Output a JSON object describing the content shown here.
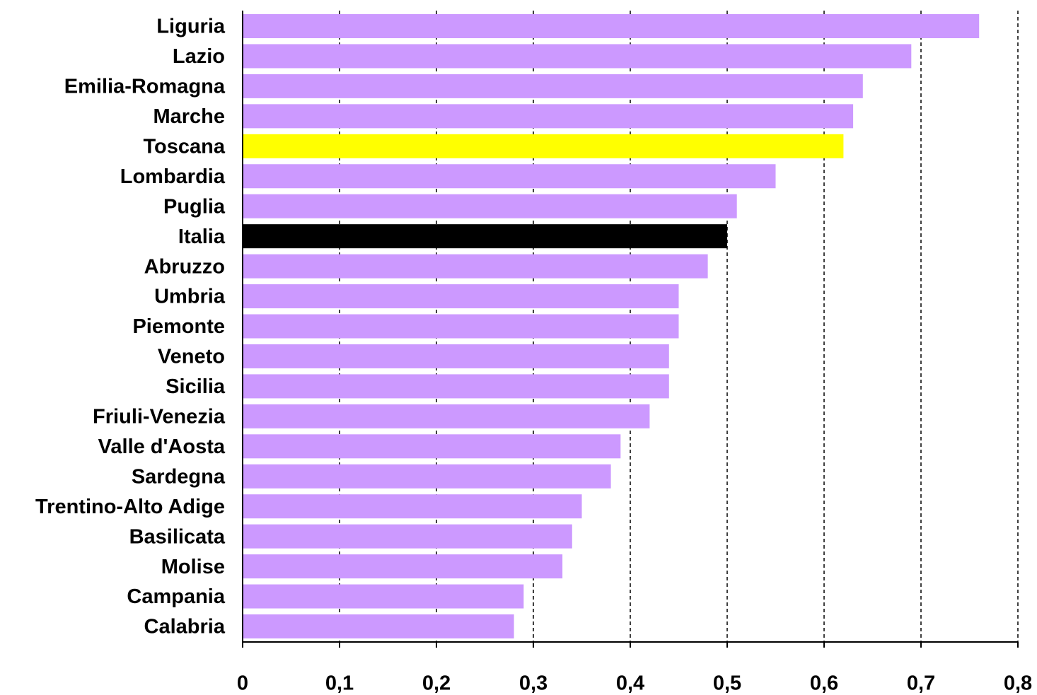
{
  "chart_data": {
    "type": "barh",
    "categories": [
      "Liguria",
      "Lazio",
      "Emilia-Romagna",
      "Marche",
      "Toscana",
      "Lombardia",
      "Puglia",
      "Italia",
      "Abruzzo",
      "Umbria",
      "Piemonte",
      "Veneto",
      "Sicilia",
      "Friuli-Venezia",
      "Valle d'Aosta",
      "Sardegna",
      "Trentino-Alto Adige",
      "Basilicata",
      "Molise",
      "Campania",
      "Calabria"
    ],
    "values": [
      0.76,
      0.69,
      0.64,
      0.63,
      0.62,
      0.55,
      0.51,
      0.5,
      0.48,
      0.45,
      0.45,
      0.44,
      0.44,
      0.42,
      0.39,
      0.38,
      0.35,
      0.34,
      0.33,
      0.29,
      0.28
    ],
    "colors": [
      "#cc99ff",
      "#cc99ff",
      "#cc99ff",
      "#cc99ff",
      "#ffff00",
      "#cc99ff",
      "#cc99ff",
      "#000000",
      "#cc99ff",
      "#cc99ff",
      "#cc99ff",
      "#cc99ff",
      "#cc99ff",
      "#cc99ff",
      "#cc99ff",
      "#cc99ff",
      "#cc99ff",
      "#cc99ff",
      "#cc99ff",
      "#cc99ff",
      "#cc99ff"
    ],
    "xlim": [
      0,
      0.8
    ],
    "xticks": [
      0,
      {
        "value": 0.1,
        "label": "0,1"
      },
      {
        "value": 0.2,
        "label": "0,2"
      },
      {
        "value": 0.3,
        "label": "0,3"
      },
      {
        "value": 0.4,
        "label": "0,4"
      },
      {
        "value": 0.5,
        "label": "0,5"
      },
      {
        "value": 0.6,
        "label": "0,6"
      },
      {
        "value": 0.7,
        "label": "0,7"
      },
      {
        "value": 0.8,
        "label": "0,8"
      }
    ],
    "grid": true
  }
}
